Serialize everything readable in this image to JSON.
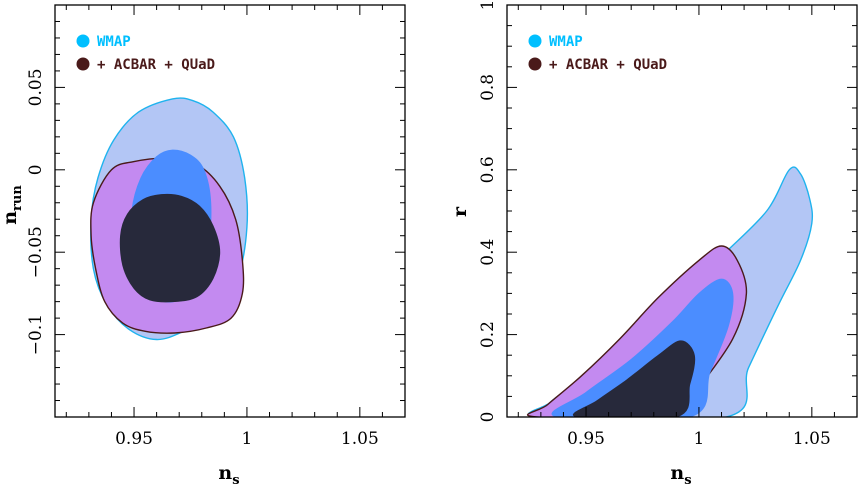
{
  "chart_data": [
    {
      "type": "contour",
      "panel": "left",
      "xlabel": "n",
      "xlabel_sub": "s",
      "ylabel": "n",
      "ylabel_sub": "run",
      "xlim": [
        0.915,
        1.07
      ],
      "ylim": [
        -0.15,
        0.1
      ],
      "xticks": [
        0.95,
        1,
        1.05
      ],
      "xtick_labels": [
        "0.95",
        "1",
        "1.05"
      ],
      "yticks": [
        -0.1,
        -0.05,
        0,
        0.05
      ],
      "ytick_labels": [
        "−0.1",
        "−0.05",
        "0",
        "0.05"
      ],
      "legend": [
        {
          "label": "WMAP",
          "color": "#00bfff"
        },
        {
          "label": "+ ACBAR + QUaD",
          "color": "#4a1a1a"
        }
      ],
      "series": [
        {
          "name": "WMAP 95%",
          "fill": "#b3c6f5",
          "stroke": "#1fb3ee",
          "contour": [
            [
              0.967,
              0.043
            ],
            [
              0.976,
              0.042
            ],
            [
              0.985,
              0.035
            ],
            [
              0.994,
              0.02
            ],
            [
              0.999,
              -0.005
            ],
            [
              1.0,
              -0.035
            ],
            [
              0.996,
              -0.065
            ],
            [
              0.986,
              -0.087
            ],
            [
              0.972,
              -0.098
            ],
            [
              0.96,
              -0.103
            ],
            [
              0.948,
              -0.097
            ],
            [
              0.938,
              -0.082
            ],
            [
              0.932,
              -0.06
            ],
            [
              0.931,
              -0.03
            ],
            [
              0.934,
              -0.005
            ],
            [
              0.941,
              0.018
            ],
            [
              0.952,
              0.035
            ]
          ]
        },
        {
          "name": "+ ACBAR + QUaD 95%",
          "fill": "#c38af0",
          "stroke": "#4a1a1a",
          "contour": [
            [
              0.94,
              0.0
            ],
            [
              0.95,
              0.005
            ],
            [
              0.965,
              0.007
            ],
            [
              0.978,
              0.003
            ],
            [
              0.988,
              -0.01
            ],
            [
              0.995,
              -0.03
            ],
            [
              0.998,
              -0.055
            ],
            [
              0.998,
              -0.075
            ],
            [
              0.993,
              -0.09
            ],
            [
              0.982,
              -0.096
            ],
            [
              0.968,
              -0.099
            ],
            [
              0.955,
              -0.098
            ],
            [
              0.945,
              -0.093
            ],
            [
              0.937,
              -0.08
            ],
            [
              0.933,
              -0.06
            ],
            [
              0.931,
              -0.04
            ],
            [
              0.932,
              -0.02
            ]
          ]
        },
        {
          "name": "WMAP 68%",
          "fill": "#4b8dff",
          "stroke": "#4b8dff",
          "contour": [
            [
              0.967,
              0.012
            ],
            [
              0.975,
              0.009
            ],
            [
              0.981,
              0.0
            ],
            [
              0.984,
              -0.02
            ],
            [
              0.983,
              -0.05
            ],
            [
              0.979,
              -0.068
            ],
            [
              0.97,
              -0.079
            ],
            [
              0.961,
              -0.079
            ],
            [
              0.953,
              -0.07
            ],
            [
              0.949,
              -0.052
            ],
            [
              0.949,
              -0.025
            ],
            [
              0.953,
              -0.005
            ],
            [
              0.96,
              0.008
            ]
          ]
        },
        {
          "name": "+ ACBAR + QUaD 68%",
          "fill": "#27293b",
          "stroke": "#27293b",
          "contour": [
            [
              0.962,
              -0.015
            ],
            [
              0.971,
              -0.016
            ],
            [
              0.979,
              -0.022
            ],
            [
              0.985,
              -0.034
            ],
            [
              0.988,
              -0.05
            ],
            [
              0.985,
              -0.066
            ],
            [
              0.978,
              -0.077
            ],
            [
              0.968,
              -0.08
            ],
            [
              0.957,
              -0.079
            ],
            [
              0.95,
              -0.072
            ],
            [
              0.945,
              -0.058
            ],
            [
              0.944,
              -0.04
            ],
            [
              0.947,
              -0.027
            ],
            [
              0.954,
              -0.018
            ]
          ]
        }
      ]
    },
    {
      "type": "contour",
      "panel": "right",
      "xlabel": "n",
      "xlabel_sub": "s",
      "ylabel": "r",
      "ylabel_sub": "",
      "xlim": [
        0.915,
        1.07
      ],
      "ylim": [
        0,
        1
      ],
      "xticks": [
        0.95,
        1,
        1.05
      ],
      "xtick_labels": [
        "0.95",
        "1",
        "1.05"
      ],
      "yticks": [
        0,
        0.2,
        0.4,
        0.6,
        0.8,
        1
      ],
      "ytick_labels": [
        "0",
        "0.2",
        "0.4",
        "0.6",
        "0.8",
        "1"
      ],
      "legend": [
        {
          "label": "WMAP",
          "color": "#00bfff"
        },
        {
          "label": "+ ACBAR + QUaD",
          "color": "#4a1a1a"
        }
      ],
      "series": [
        {
          "name": "WMAP 95%",
          "fill": "#b3c6f5",
          "stroke": "#1fb3ee",
          "contour": [
            [
              0.93,
              0.0
            ],
            [
              0.934,
              0.035
            ],
            [
              0.95,
              0.1
            ],
            [
              0.97,
              0.18
            ],
            [
              0.99,
              0.28
            ],
            [
              1.01,
              0.39
            ],
            [
              1.03,
              0.5
            ],
            [
              1.04,
              0.6
            ],
            [
              1.045,
              0.59
            ],
            [
              1.049,
              0.53
            ],
            [
              1.05,
              0.47
            ],
            [
              1.045,
              0.38
            ],
            [
              1.035,
              0.27
            ],
            [
              1.022,
              0.12
            ],
            [
              1.012,
              0.0
            ]
          ]
        },
        {
          "name": "+ ACBAR + QUaD 95%",
          "fill": "#c38af0",
          "stroke": "#4a1a1a",
          "contour": [
            [
              0.928,
              0.0
            ],
            [
              0.933,
              0.03
            ],
            [
              0.948,
              0.1
            ],
            [
              0.965,
              0.19
            ],
            [
              0.982,
              0.29
            ],
            [
              1.0,
              0.38
            ],
            [
              1.01,
              0.415
            ],
            [
              1.017,
              0.38
            ],
            [
              1.021,
              0.3
            ],
            [
              1.015,
              0.19
            ],
            [
              1.0,
              0.07
            ],
            [
              0.992,
              0.0
            ]
          ]
        },
        {
          "name": "WMAP 68%",
          "fill": "#4b8dff",
          "stroke": "#4b8dff",
          "contour": [
            [
              0.937,
              0.0
            ],
            [
              0.95,
              0.06
            ],
            [
              0.97,
              0.14
            ],
            [
              0.988,
              0.23
            ],
            [
              1.0,
              0.3
            ],
            [
              1.01,
              0.335
            ],
            [
              1.015,
              0.3
            ],
            [
              1.013,
              0.22
            ],
            [
              1.005,
              0.11
            ],
            [
              0.996,
              0.0
            ]
          ]
        },
        {
          "name": "+ ACBAR + QUaD 68%",
          "fill": "#27293b",
          "stroke": "#27293b",
          "contour": [
            [
              0.946,
              0.0
            ],
            [
              0.955,
              0.04
            ],
            [
              0.968,
              0.09
            ],
            [
              0.982,
              0.15
            ],
            [
              0.992,
              0.185
            ],
            [
              0.998,
              0.15
            ],
            [
              0.996,
              0.08
            ],
            [
              0.99,
              0.0
            ]
          ]
        }
      ]
    }
  ]
}
